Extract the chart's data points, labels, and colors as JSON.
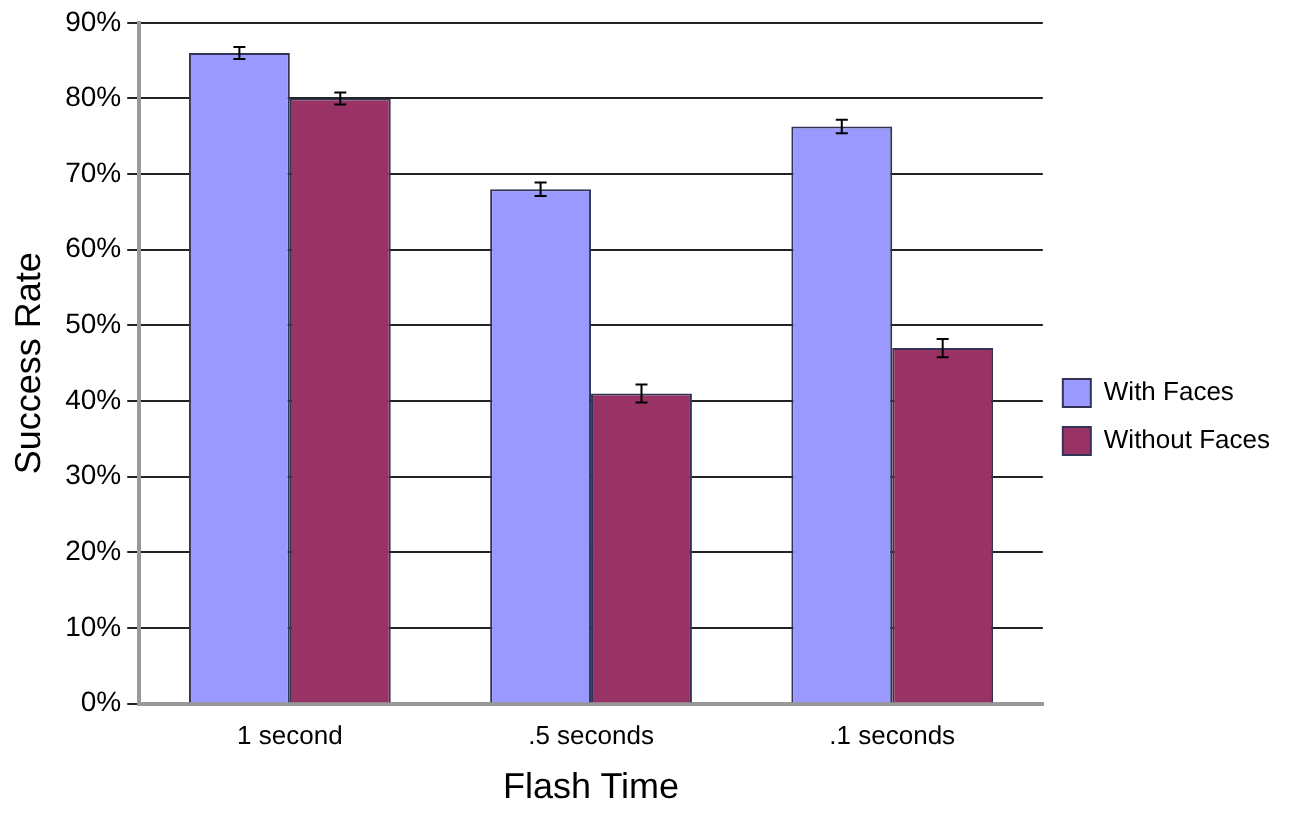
{
  "chart_data": {
    "type": "bar",
    "xlabel": "Flash Time",
    "ylabel": "Success Rate",
    "categories": [
      "1 second",
      ".5 seconds",
      ".1 seconds"
    ],
    "series": [
      {
        "name": "With Faces",
        "color": "#9999ff",
        "values": [
          86,
          68,
          76.3
        ],
        "errors": [
          0.8,
          0.9,
          0.9
        ]
      },
      {
        "name": "Without Faces",
        "color": "#993366",
        "values": [
          80,
          41,
          47
        ],
        "errors": [
          0.8,
          1.2,
          1.2
        ]
      }
    ],
    "ylim": [
      0,
      90
    ],
    "yticks": [
      {
        "value": 0,
        "label": "0%"
      },
      {
        "value": 10,
        "label": "10%"
      },
      {
        "value": 20,
        "label": "20%"
      },
      {
        "value": 30,
        "label": "30%"
      },
      {
        "value": 40,
        "label": "40%"
      },
      {
        "value": 50,
        "label": "50%"
      },
      {
        "value": 60,
        "label": "60%"
      },
      {
        "value": 70,
        "label": "70%"
      },
      {
        "value": 80,
        "label": "80%"
      },
      {
        "value": 90,
        "label": "90%"
      }
    ],
    "grid": "y",
    "legend": "right"
  }
}
